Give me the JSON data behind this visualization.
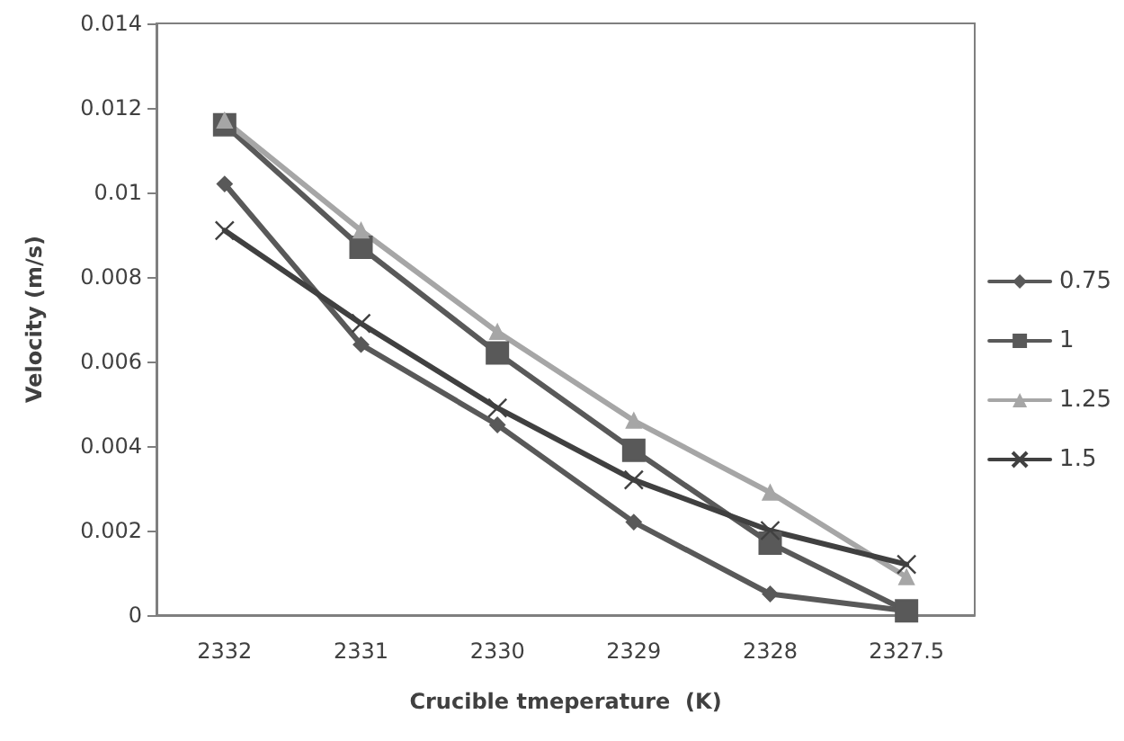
{
  "chart_data": {
    "type": "line",
    "xlabel": "Crucible tmeperature  (K)",
    "ylabel": "Velocity (m/s)",
    "categories": [
      "2332",
      "2331",
      "2330",
      "2329",
      "2328",
      "2327.5"
    ],
    "series": [
      {
        "name": "0.75",
        "color": "#595959",
        "marker": "diamond",
        "values": [
          0.0102,
          0.0064,
          0.0045,
          0.0022,
          0.0005,
          0.0001
        ]
      },
      {
        "name": "1",
        "color": "#595959",
        "marker": "square",
        "values": [
          0.0116,
          0.0087,
          0.0062,
          0.0039,
          0.0017,
          0.0001
        ]
      },
      {
        "name": "1.25",
        "color": "#a6a6a6",
        "marker": "triangle",
        "values": [
          0.0117,
          0.0091,
          0.0067,
          0.0046,
          0.0029,
          0.0009
        ]
      },
      {
        "name": "1.5",
        "color": "#404040",
        "marker": "cross",
        "values": [
          0.0091,
          0.0069,
          0.0049,
          0.0032,
          0.002,
          0.0012
        ]
      }
    ],
    "ylim": [
      0,
      0.014
    ],
    "yticks": [
      0,
      0.002,
      0.004,
      0.006,
      0.008,
      0.01,
      0.012,
      0.014
    ],
    "grid": false,
    "legend": "right",
    "line_style": "solid"
  }
}
